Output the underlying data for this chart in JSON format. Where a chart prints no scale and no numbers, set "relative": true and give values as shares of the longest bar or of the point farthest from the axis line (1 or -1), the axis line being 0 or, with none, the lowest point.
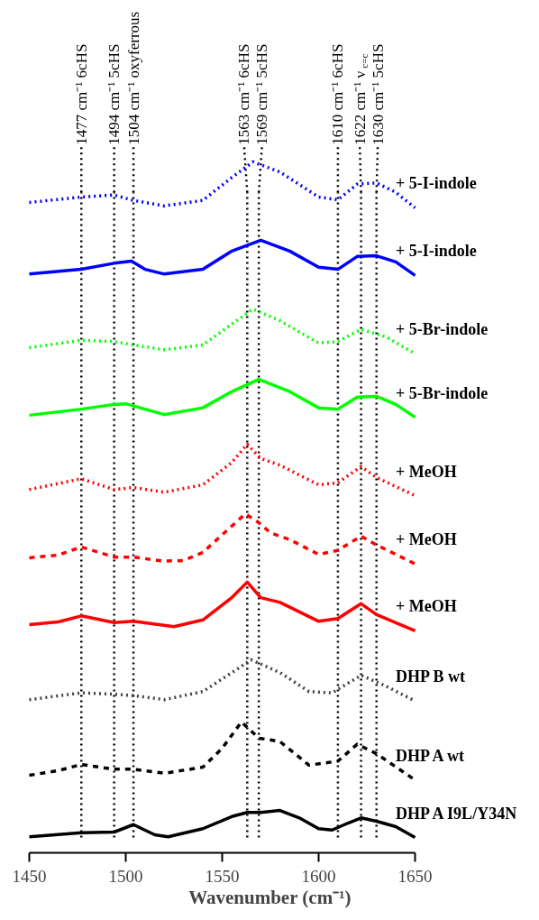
{
  "chart_data": {
    "type": "line",
    "relative": true,
    "xlabel": "Wavenumber (cm⁻¹)",
    "xlim": [
      1450,
      1650
    ],
    "xticks": [
      1450,
      1500,
      1550,
      1600,
      1650
    ],
    "grid": false,
    "marker": "none",
    "series": [
      {
        "name": "+ 5-I-indole",
        "color": "#0000ff",
        "line_style": "dotted",
        "x": [
          1450,
          1477,
          1494,
          1504,
          1520,
          1540,
          1555,
          1566,
          1580,
          1600,
          1610,
          1620,
          1630,
          1640,
          1650
        ],
        "values": [
          0.94,
          0.948,
          0.951,
          0.943,
          0.935,
          0.943,
          0.977,
          1.0,
          0.985,
          0.948,
          0.944,
          0.967,
          0.969,
          0.955,
          0.932
        ]
      },
      {
        "name": "+ 5-I-indole",
        "color": "#0000ff",
        "line_style": "solid",
        "x": [
          1450,
          1477,
          1494,
          1503,
          1510,
          1520,
          1540,
          1555,
          1570,
          1585,
          1600,
          1610,
          1620,
          1630,
          1640,
          1650
        ],
        "values": [
          0.834,
          0.841,
          0.85,
          0.853,
          0.841,
          0.834,
          0.841,
          0.868,
          0.884,
          0.868,
          0.844,
          0.841,
          0.86,
          0.861,
          0.852,
          0.832
        ]
      },
      {
        "name": "+ 5-Br-indole",
        "color": "#00ff00",
        "line_style": "dotted",
        "x": [
          1450,
          1477,
          1494,
          1504,
          1520,
          1540,
          1555,
          1566,
          1580,
          1600,
          1610,
          1622,
          1635,
          1650
        ],
        "values": [
          0.725,
          0.736,
          0.734,
          0.729,
          0.722,
          0.729,
          0.76,
          0.782,
          0.765,
          0.732,
          0.734,
          0.752,
          0.741,
          0.716
        ]
      },
      {
        "name": "+ 5-Br-indole",
        "color": "#00ff00",
        "line_style": "solid",
        "x": [
          1450,
          1477,
          1494,
          1500,
          1510,
          1520,
          1540,
          1555,
          1569,
          1585,
          1600,
          1610,
          1620,
          1630,
          1640,
          1650
        ],
        "values": [
          0.625,
          0.634,
          0.641,
          0.642,
          0.634,
          0.626,
          0.636,
          0.66,
          0.678,
          0.66,
          0.636,
          0.634,
          0.652,
          0.653,
          0.641,
          0.622
        ]
      },
      {
        "name": "+ MeOH",
        "color": "#ff0000",
        "line_style": "dotted",
        "x": [
          1450,
          1477,
          1494,
          1504,
          1520,
          1540,
          1555,
          1563,
          1570,
          1580,
          1600,
          1610,
          1622,
          1630,
          1650
        ],
        "values": [
          0.515,
          0.531,
          0.515,
          0.518,
          0.511,
          0.522,
          0.555,
          0.582,
          0.561,
          0.551,
          0.522,
          0.525,
          0.549,
          0.533,
          0.506
        ]
      },
      {
        "name": "+ MeOH",
        "color": "#ff0000",
        "line_style": "dashed",
        "x": [
          1450,
          1465,
          1477,
          1494,
          1504,
          1520,
          1530,
          1540,
          1555,
          1562,
          1569,
          1575,
          1585,
          1600,
          1610,
          1622,
          1630,
          1650
        ],
        "values": [
          0.414,
          0.418,
          0.43,
          0.415,
          0.415,
          0.409,
          0.41,
          0.422,
          0.461,
          0.479,
          0.466,
          0.451,
          0.441,
          0.419,
          0.425,
          0.446,
          0.433,
          0.405
        ]
      },
      {
        "name": "+ MeOH",
        "color": "#ff0000",
        "line_style": "solid",
        "x": [
          1450,
          1465,
          1477,
          1494,
          1504,
          1525,
          1540,
          1555,
          1563,
          1570,
          1580,
          1600,
          1610,
          1622,
          1630,
          1650
        ],
        "values": [
          0.315,
          0.319,
          0.328,
          0.318,
          0.32,
          0.312,
          0.322,
          0.355,
          0.378,
          0.355,
          0.348,
          0.32,
          0.324,
          0.346,
          0.33,
          0.306
        ]
      },
      {
        "name": "DHP B wt",
        "color": "#404040",
        "line_style": "dotted",
        "x": [
          1450,
          1477,
          1494,
          1504,
          1520,
          1540,
          1555,
          1565,
          1580,
          1595,
          1607,
          1622,
          1635,
          1650
        ],
        "values": [
          0.204,
          0.214,
          0.212,
          0.21,
          0.204,
          0.216,
          0.244,
          0.263,
          0.244,
          0.216,
          0.214,
          0.24,
          0.224,
          0.202
        ]
      },
      {
        "name": "DHP A wt",
        "color": "#000000",
        "line_style": "dashed",
        "x": [
          1450,
          1465,
          1477,
          1494,
          1504,
          1520,
          1540,
          1550,
          1560,
          1569,
          1580,
          1595,
          1610,
          1620,
          1630,
          1650
        ],
        "values": [
          0.092,
          0.099,
          0.108,
          0.101,
          0.101,
          0.095,
          0.104,
          0.132,
          0.171,
          0.147,
          0.142,
          0.107,
          0.113,
          0.138,
          0.124,
          0.085
        ]
      },
      {
        "name": "DHP A I9L/Y34N",
        "color": "#000000",
        "line_style": "solid",
        "x": [
          1450,
          1477,
          1494,
          1504,
          1515,
          1522,
          1540,
          1555,
          1563,
          1570,
          1580,
          1590,
          1600,
          1607,
          1615,
          1622,
          1630,
          1640,
          1650
        ],
        "values": [
          0.001,
          0.007,
          0.008,
          0.019,
          0.004,
          0.001,
          0.013,
          0.031,
          0.037,
          0.037,
          0.04,
          0.029,
          0.013,
          0.011,
          0.021,
          0.029,
          0.024,
          0.016,
          0.0
        ]
      }
    ],
    "ref_lines": [
      {
        "axis": "x",
        "value": 1477,
        "label": "1477 cm⁻¹ 6cHS",
        "line_style": "dotted",
        "color": "#000000"
      },
      {
        "axis": "x",
        "value": 1494,
        "label": "1494 cm⁻¹ 5cHS",
        "line_style": "dotted",
        "color": "#000000"
      },
      {
        "axis": "x",
        "value": 1504,
        "label": "1504 cm⁻¹ oxyferrous",
        "line_style": "dotted",
        "color": "#000000"
      },
      {
        "axis": "x",
        "value": 1563,
        "label": "1563 cm⁻¹ 6cHS",
        "line_style": "dotted",
        "color": "#000000"
      },
      {
        "axis": "x",
        "value": 1569,
        "label": "1569 cm⁻¹ 5cHS",
        "line_style": "dotted",
        "color": "#000000"
      },
      {
        "axis": "x",
        "value": 1610,
        "label": "1610 cm⁻¹ 6cHS",
        "line_style": "dotted",
        "color": "#000000"
      },
      {
        "axis": "x",
        "value": 1622,
        "label": "1622 cm⁻¹ ν$_{c=c}$",
        "line_style": "dotted",
        "color": "#000000"
      },
      {
        "axis": "x",
        "value": 1630,
        "label": "1630 cm⁻¹ 5cHS",
        "line_style": "dotted",
        "color": "#000000"
      }
    ]
  }
}
